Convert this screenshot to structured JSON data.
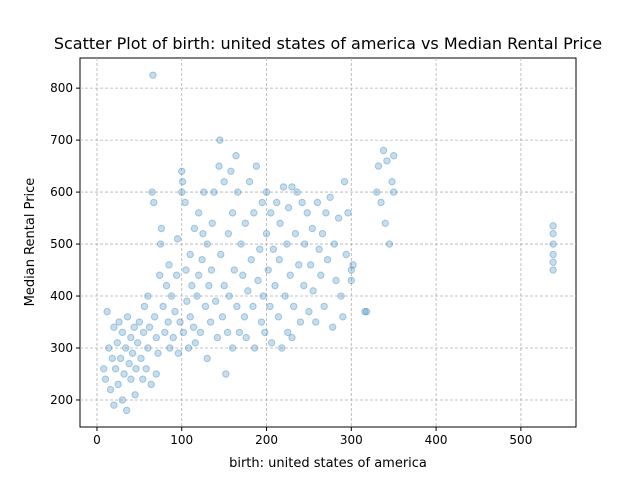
{
  "chart_data": {
    "type": "scatter",
    "title": "Scatter Plot of birth: united states of america vs Median Rental Price",
    "x_label": "birth: united states of america",
    "y_label": "Median Rental Price",
    "color": "#1f77b4",
    "grid": true,
    "xlim": [
      -20,
      565
    ],
    "ylim": [
      148,
      858
    ],
    "xticks": [
      0,
      100,
      200,
      300,
      400,
      500
    ],
    "yticks": [
      200,
      300,
      400,
      500,
      600,
      700,
      800
    ],
    "x": [
      8,
      10,
      12,
      14,
      16,
      18,
      20,
      20,
      22,
      24,
      25,
      26,
      28,
      30,
      30,
      32,
      34,
      35,
      36,
      38,
      40,
      40,
      42,
      44,
      45,
      46,
      48,
      50,
      52,
      54,
      55,
      56,
      58,
      60,
      60,
      62,
      64,
      65,
      66,
      67,
      68,
      70,
      70,
      72,
      74,
      75,
      76,
      78,
      80,
      82,
      84,
      85,
      86,
      88,
      90,
      92,
      94,
      95,
      96,
      98,
      100,
      100,
      101,
      102,
      104,
      105,
      106,
      108,
      110,
      110,
      112,
      114,
      115,
      116,
      118,
      120,
      120,
      122,
      124,
      125,
      126,
      128,
      130,
      130,
      132,
      134,
      135,
      136,
      138,
      140,
      142,
      144,
      145,
      146,
      148,
      150,
      150,
      152,
      154,
      155,
      156,
      158,
      160,
      160,
      162,
      164,
      165,
      166,
      168,
      170,
      172,
      174,
      175,
      176,
      178,
      180,
      182,
      184,
      185,
      186,
      188,
      190,
      192,
      194,
      195,
      196,
      198,
      200,
      200,
      202,
      204,
      205,
      206,
      208,
      210,
      212,
      214,
      215,
      216,
      218,
      220,
      222,
      224,
      225,
      226,
      228,
      230,
      230,
      232,
      234,
      236,
      238,
      240,
      242,
      244,
      245,
      248,
      250,
      252,
      254,
      255,
      258,
      260,
      262,
      264,
      266,
      268,
      270,
      272,
      275,
      278,
      280,
      282,
      285,
      288,
      290,
      292,
      294,
      296,
      300,
      300,
      302,
      316,
      318,
      330,
      332,
      335,
      338,
      340,
      342,
      345,
      348,
      350,
      350,
      538,
      538,
      538,
      538,
      538,
      538
    ],
    "y": [
      260,
      240,
      370,
      300,
      220,
      280,
      190,
      340,
      260,
      310,
      230,
      350,
      280,
      200,
      330,
      250,
      300,
      180,
      360,
      270,
      240,
      320,
      290,
      340,
      210,
      260,
      310,
      350,
      280,
      240,
      330,
      380,
      260,
      300,
      400,
      340,
      230,
      600,
      825,
      580,
      360,
      320,
      250,
      290,
      440,
      500,
      530,
      380,
      330,
      420,
      350,
      460,
      300,
      400,
      320,
      370,
      440,
      510,
      290,
      350,
      640,
      600,
      620,
      330,
      580,
      450,
      390,
      300,
      360,
      480,
      420,
      340,
      530,
      310,
      400,
      440,
      560,
      330,
      470,
      520,
      600,
      380,
      280,
      500,
      420,
      350,
      450,
      540,
      600,
      390,
      320,
      650,
      700,
      480,
      360,
      620,
      420,
      250,
      330,
      520,
      400,
      640,
      300,
      560,
      450,
      670,
      380,
      600,
      330,
      500,
      440,
      360,
      540,
      320,
      410,
      620,
      470,
      380,
      560,
      300,
      650,
      430,
      490,
      350,
      580,
      400,
      330,
      600,
      520,
      450,
      380,
      560,
      310,
      490,
      420,
      580,
      360,
      470,
      540,
      300,
      610,
      400,
      500,
      330,
      570,
      440,
      320,
      610,
      380,
      520,
      600,
      460,
      350,
      580,
      420,
      500,
      560,
      370,
      460,
      530,
      410,
      350,
      580,
      490,
      440,
      520,
      380,
      560,
      470,
      590,
      340,
      500,
      430,
      550,
      400,
      360,
      620,
      480,
      560,
      450,
      430,
      460,
      370,
      370,
      600,
      650,
      580,
      680,
      540,
      660,
      500,
      620,
      670,
      600,
      450,
      480,
      500,
      520,
      535,
      465
    ]
  }
}
